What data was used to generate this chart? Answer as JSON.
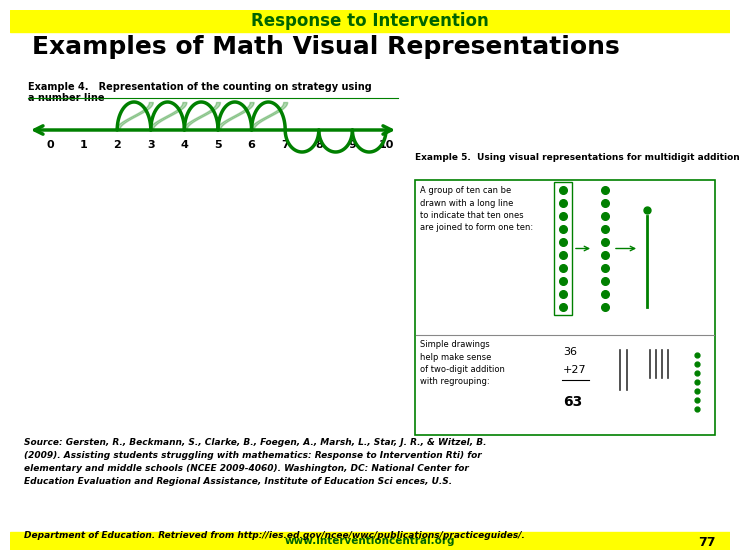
{
  "title_banner": "Response to Intervention",
  "title_banner_bg": "#ffff00",
  "title_banner_fg": "#006400",
  "main_title": "Examples of Math Visual Representations",
  "main_title_color": "#000000",
  "main_bg": "#ffffff",
  "example4_label_line1": "Example 4.   Representation of the counting on strategy using",
  "example4_label_line2": "a number line",
  "example5_label": "Example 5.  Using visual representations for multidigit addition",
  "source_text_line1": "Source: Gersten, R., Beckmann, S., Clarke, B., Foegen, A., Marsh, L., Star, J. R., & Witzel, B.",
  "source_text_line2": "(2009). Assisting students struggling with mathematics: Response to Intervention Rti) for",
  "source_text_line3": "elementary and middle schools (NCEE 2009-4060). Washington, DC: National Center for",
  "source_text_line4": "Education Evaluation and Regional Assistance, Institute of Education Sci ences, U.S.",
  "source_text_line5": "Department of Education. Retrieved from http://ies.ed.gov/ncee/wwc/publications/practiceguides/.",
  "bottom_banner_text": "www.interventioncentral.org",
  "page_number": "77",
  "bottom_banner_bg": "#ffff00",
  "bottom_banner_fg": "#006400",
  "number_line_color": "#008000",
  "number_line_numbers": [
    "0",
    "1",
    "2",
    "3",
    "4",
    "5",
    "6",
    "7",
    "8",
    "9",
    "10"
  ],
  "box_border_color": "#008000",
  "dot_color": "#008000"
}
